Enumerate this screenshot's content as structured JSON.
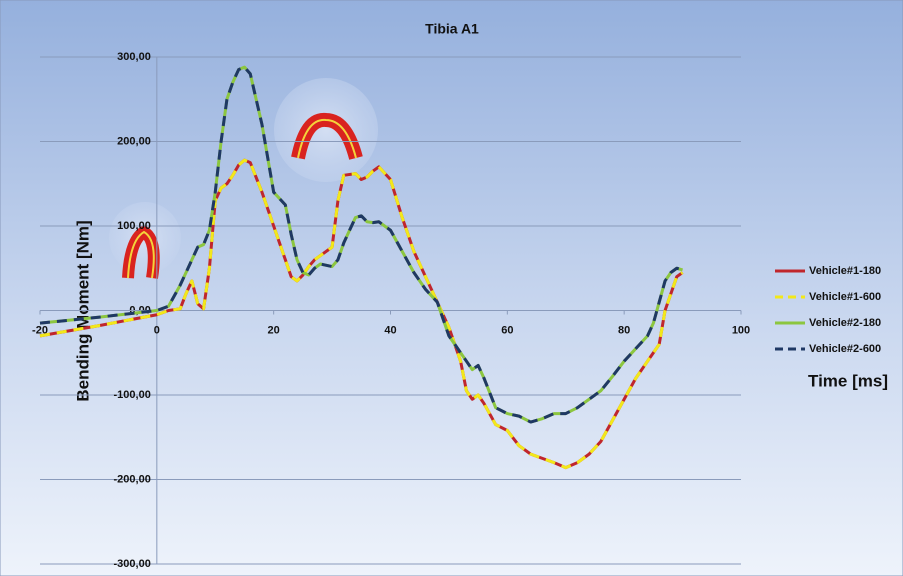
{
  "chart_data": {
    "type": "line",
    "title": "Tibia A1",
    "x_label": "Time [ms]",
    "y_label": "Bending Moment [Nm]",
    "x": [
      -20,
      -10,
      0,
      2,
      4,
      5,
      6,
      7,
      8,
      9,
      10,
      11,
      12,
      13,
      14,
      15,
      16,
      18,
      20,
      22,
      23,
      24,
      25,
      26,
      27,
      28,
      30,
      31,
      32,
      34,
      35,
      36,
      37,
      38,
      40,
      42,
      44,
      46,
      48,
      50,
      52,
      53,
      54,
      55,
      56,
      58,
      60,
      62,
      64,
      66,
      68,
      70,
      72,
      74,
      76,
      78,
      80,
      82,
      84,
      85,
      86,
      87,
      88,
      89,
      90
    ],
    "series": [
      {
        "name": "Vehicle#1-180",
        "color": "#c0262c",
        "dashed": false,
        "values": [
          -30,
          -18,
          -5,
          0,
          2,
          20,
          35,
          8,
          2,
          50,
          130,
          145,
          150,
          160,
          172,
          178,
          175,
          140,
          100,
          60,
          40,
          35,
          42,
          52,
          60,
          65,
          75,
          130,
          160,
          162,
          155,
          158,
          165,
          170,
          155,
          110,
          70,
          40,
          10,
          -20,
          -60,
          -95,
          -105,
          -100,
          -110,
          -135,
          -142,
          -160,
          -170,
          -175,
          -180,
          -186,
          -180,
          -170,
          -155,
          -130,
          -105,
          -80,
          -60,
          -50,
          -40,
          0,
          20,
          40,
          45
        ]
      },
      {
        "name": "Vehicle#1-600",
        "color": "#f2e81a",
        "dashed": true,
        "values": [
          -30,
          -18,
          -5,
          0,
          2,
          20,
          35,
          8,
          2,
          50,
          130,
          145,
          150,
          160,
          172,
          178,
          175,
          140,
          100,
          60,
          40,
          35,
          42,
          52,
          60,
          65,
          75,
          130,
          160,
          162,
          155,
          158,
          165,
          170,
          155,
          110,
          70,
          40,
          10,
          -20,
          -60,
          -95,
          -105,
          -100,
          -110,
          -135,
          -142,
          -160,
          -170,
          -175,
          -180,
          -186,
          -180,
          -170,
          -155,
          -130,
          -105,
          -80,
          -60,
          -50,
          -40,
          0,
          20,
          40,
          45
        ]
      },
      {
        "name": "Vehicle#2-180",
        "color": "#8cc63f",
        "dashed": false,
        "values": [
          -15,
          -8,
          0,
          5,
          30,
          45,
          60,
          75,
          78,
          95,
          140,
          200,
          250,
          270,
          285,
          288,
          280,
          220,
          140,
          125,
          90,
          60,
          45,
          42,
          50,
          55,
          52,
          60,
          80,
          110,
          112,
          105,
          104,
          105,
          95,
          70,
          45,
          25,
          10,
          -30,
          -50,
          -60,
          -70,
          -65,
          -80,
          -115,
          -122,
          -125,
          -132,
          -128,
          -122,
          -122,
          -115,
          -105,
          -95,
          -78,
          -60,
          -45,
          -30,
          -15,
          10,
          35,
          45,
          50,
          48
        ]
      },
      {
        "name": "Vehicle#2-600",
        "color": "#1f3864",
        "dashed": true,
        "values": [
          -15,
          -8,
          0,
          5,
          30,
          45,
          60,
          75,
          78,
          95,
          140,
          200,
          250,
          270,
          285,
          288,
          280,
          220,
          140,
          125,
          90,
          60,
          45,
          42,
          50,
          55,
          52,
          60,
          80,
          110,
          112,
          105,
          104,
          105,
          95,
          70,
          45,
          25,
          10,
          -30,
          -50,
          -60,
          -70,
          -65,
          -80,
          -115,
          -122,
          -125,
          -132,
          -128,
          -122,
          -122,
          -115,
          -105,
          -95,
          -78,
          -60,
          -45,
          -30,
          -15,
          10,
          35,
          45,
          50,
          48
        ]
      }
    ],
    "xlim": [
      -20,
      100
    ],
    "xticks": [
      -20,
      0,
      20,
      40,
      60,
      80,
      100
    ],
    "ylim": [
      -300,
      300
    ],
    "yticks": [
      {
        "value": -300,
        "label": "-300,00"
      },
      {
        "value": -200,
        "label": "-200,00"
      },
      {
        "value": -100,
        "label": "-100,00"
      },
      {
        "value": 0,
        "label": "0,00"
      },
      {
        "value": 100,
        "label": "100,00"
      },
      {
        "value": 200,
        "label": "200,00"
      },
      {
        "value": 300,
        "label": "300,00"
      }
    ],
    "grid": true,
    "legend": "right"
  }
}
